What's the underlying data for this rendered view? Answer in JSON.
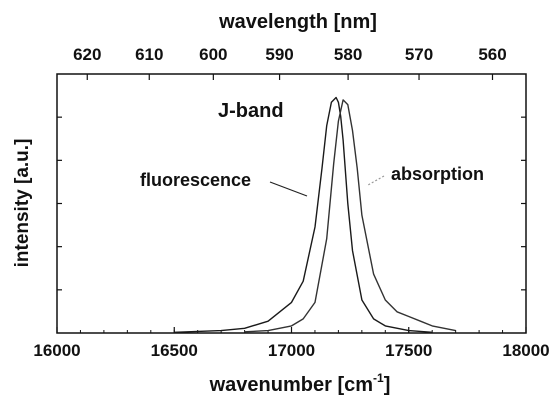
{
  "chart_data": {
    "type": "line",
    "top_axis": {
      "label": "wavelength  [nm]",
      "ticks": [
        "620",
        "610",
        "600",
        "590",
        "580",
        "570",
        "560"
      ]
    },
    "x_axis": {
      "label": "wavenumber  [cm",
      "label_exponent": "-1",
      "label_close": "]",
      "range": [
        16000,
        18000
      ],
      "ticks": [
        "16000",
        "16500",
        "17000",
        "17500",
        "18000"
      ]
    },
    "y_axis": {
      "label": "intensity  [a.u.]",
      "range": [
        0,
        1.1
      ]
    },
    "annotations": {
      "band": "J-band",
      "fluorescence": "fluorescence",
      "absorption": "absorption"
    },
    "series": [
      {
        "name": "fluorescence",
        "color": "#1a1a1a",
        "x": [
          16500,
          16700,
          16800,
          16900,
          17000,
          17050,
          17100,
          17130,
          17150,
          17170,
          17190,
          17200,
          17210,
          17220,
          17240,
          17260,
          17300,
          17350,
          17400,
          17500,
          17600
        ],
        "y": [
          0.003,
          0.01,
          0.02,
          0.05,
          0.13,
          0.22,
          0.45,
          0.7,
          0.88,
          0.98,
          1.0,
          0.98,
          0.92,
          0.82,
          0.55,
          0.35,
          0.14,
          0.06,
          0.03,
          0.01,
          0.003
        ]
      },
      {
        "name": "absorption",
        "color": "#333333",
        "x": [
          16800,
          16900,
          17000,
          17050,
          17100,
          17150,
          17180,
          17200,
          17220,
          17240,
          17260,
          17280,
          17300,
          17350,
          17400,
          17450,
          17500,
          17550,
          17600,
          17700
        ],
        "y": [
          0.005,
          0.01,
          0.03,
          0.06,
          0.13,
          0.4,
          0.72,
          0.9,
          0.99,
          0.97,
          0.86,
          0.7,
          0.5,
          0.25,
          0.14,
          0.09,
          0.07,
          0.05,
          0.03,
          0.01
        ]
      }
    ]
  }
}
